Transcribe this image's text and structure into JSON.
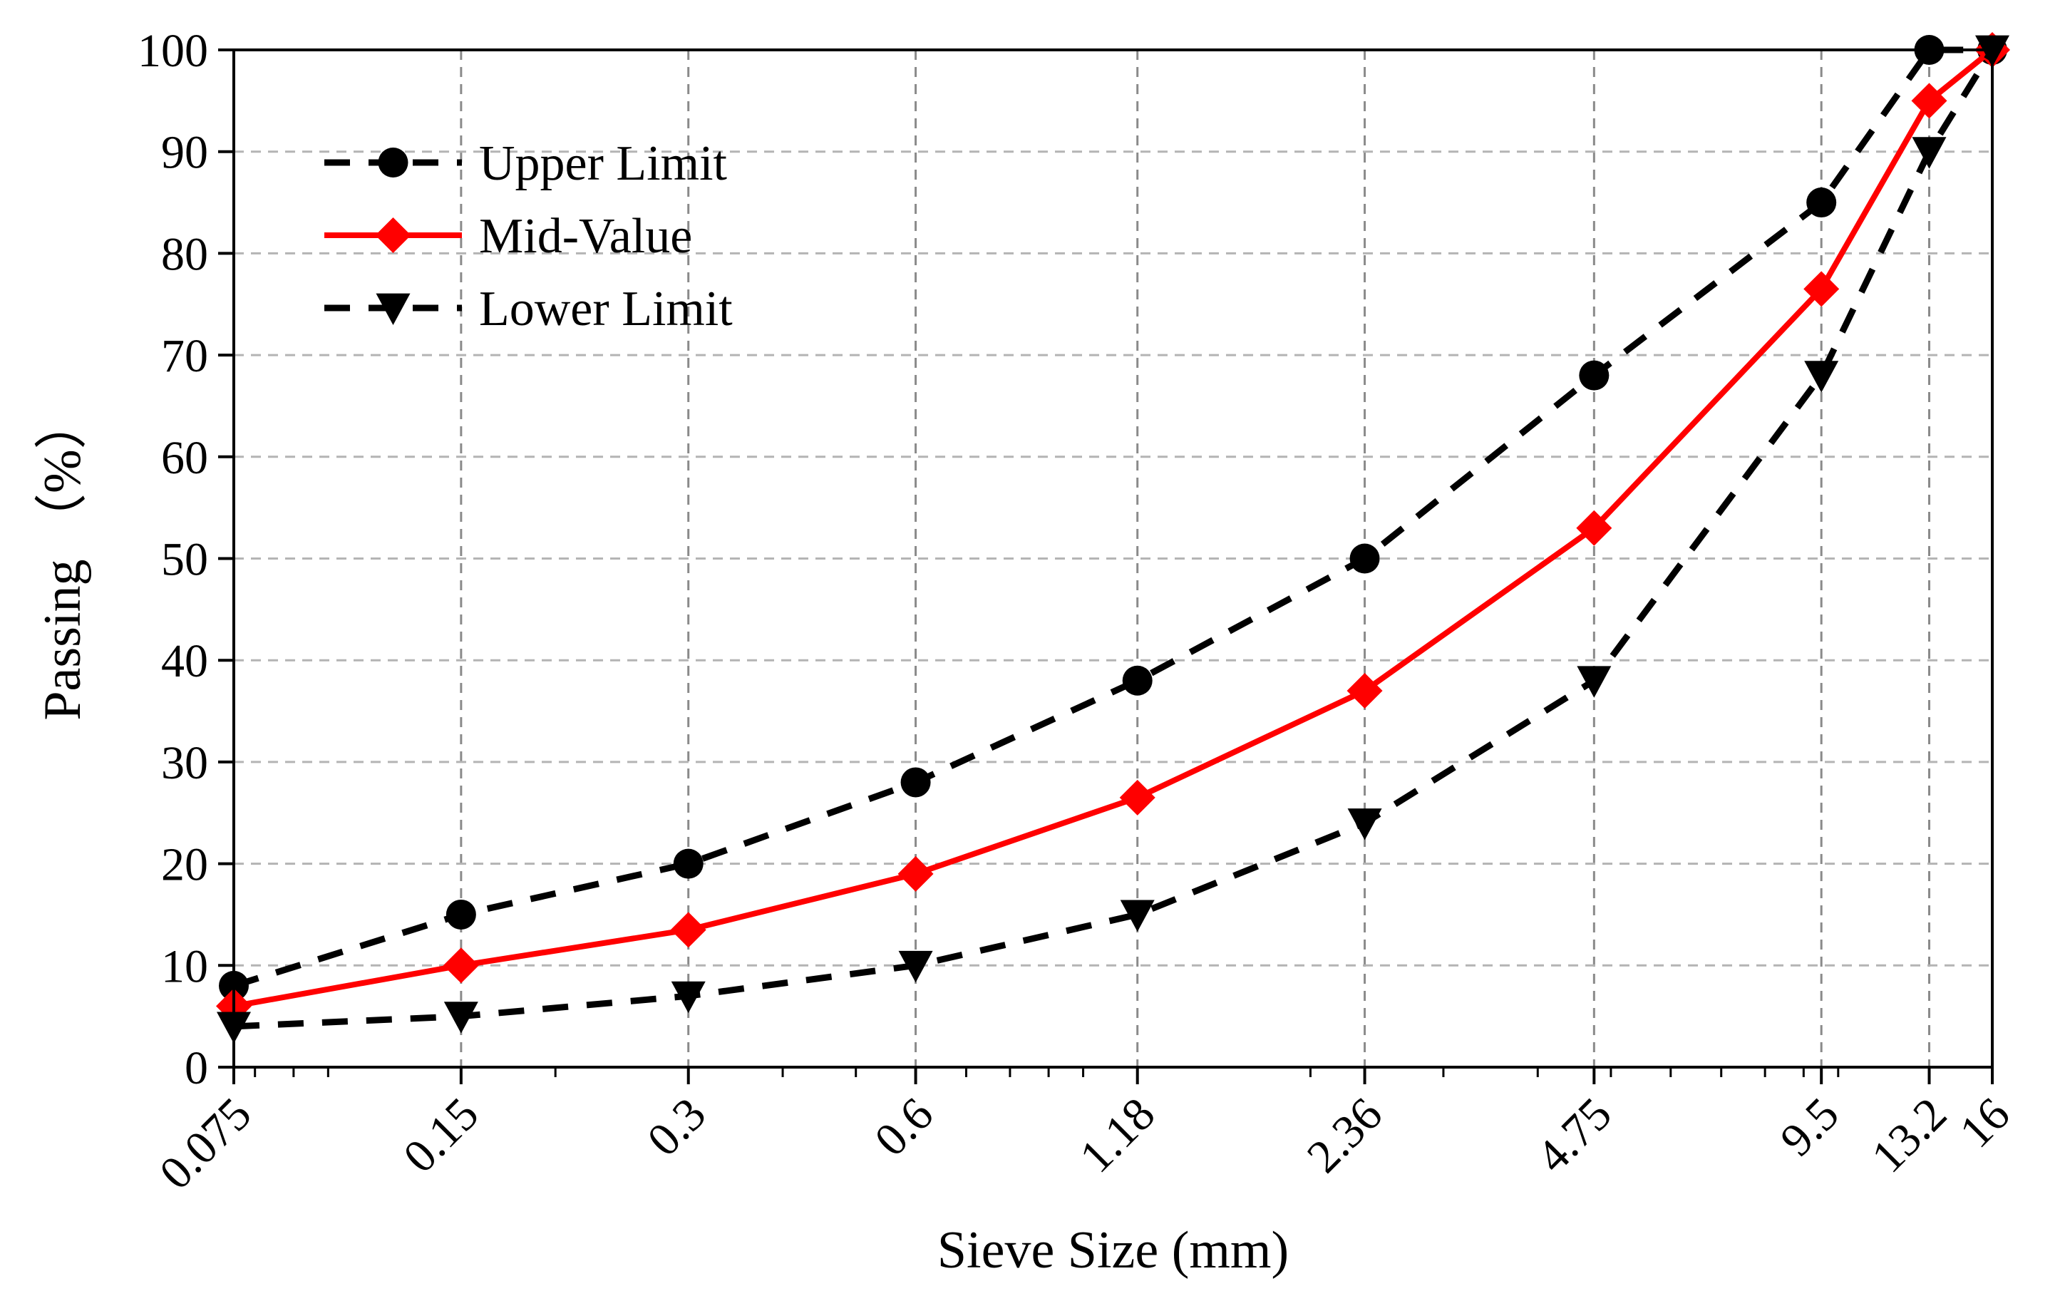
{
  "chart_data": {
    "type": "line",
    "xscale": "log",
    "xlabel": "Sieve Size (mm)",
    "ylabel": "Passing （%）",
    "ylim": [
      0,
      100
    ],
    "yticks": [
      0,
      10,
      20,
      30,
      40,
      50,
      60,
      70,
      80,
      90,
      100
    ],
    "ytick_labels": [
      "0",
      "10",
      "20",
      "30",
      "40",
      "50",
      "60",
      "70",
      "80",
      "90",
      "100"
    ],
    "x": [
      0.075,
      0.15,
      0.3,
      0.6,
      1.18,
      2.36,
      4.75,
      9.5,
      13.2,
      16
    ],
    "xtick_labels": [
      "0.075",
      "0.15",
      "0.3",
      "0.6",
      "1.18",
      "2.36",
      "4.75",
      "9.5",
      "13.2",
      "16"
    ],
    "grid": true,
    "legend_position": "top-left",
    "series": [
      {
        "name": "Upper Limit",
        "values": [
          8,
          15,
          20,
          28,
          38,
          50,
          68,
          85,
          100,
          100
        ],
        "color": "#000000",
        "dash": "dashed",
        "marker": "circle"
      },
      {
        "name": "Mid-Value",
        "values": [
          6,
          10,
          13.5,
          19,
          26.5,
          37,
          53,
          76.5,
          95,
          100
        ],
        "color": "#ff0000",
        "dash": "solid",
        "marker": "diamond"
      },
      {
        "name": "Lower Limit",
        "values": [
          4,
          5,
          7,
          10,
          15,
          24,
          38,
          68,
          90,
          100
        ],
        "color": "#000000",
        "dash": "dashed",
        "marker": "triangle-down"
      }
    ]
  }
}
